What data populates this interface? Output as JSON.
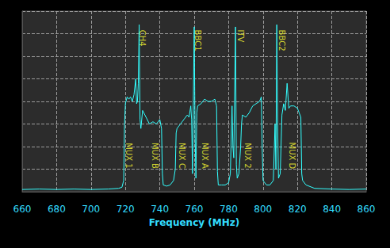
{
  "chart_data": {
    "type": "line",
    "x_label": "Frequency (MHz)",
    "color": "#33ffff",
    "xlim": [
      660,
      860
    ],
    "xticks": [
      660,
      680,
      700,
      720,
      740,
      760,
      780,
      800,
      820,
      840,
      860
    ],
    "ylim": [
      0,
      8
    ],
    "yticks": [
      0,
      1,
      2,
      3,
      4,
      5,
      6,
      7,
      8
    ],
    "grid": true,
    "tick_labels": "x",
    "x": [
      660,
      670,
      680,
      690,
      700,
      710,
      716,
      718,
      719,
      719.5,
      720,
      721,
      722,
      723,
      724,
      725,
      726,
      726.5,
      727,
      727.5,
      728,
      728.5,
      729,
      730,
      732,
      734,
      736,
      738,
      740,
      741,
      741.5,
      742,
      744,
      746,
      748,
      749,
      749.5,
      750,
      752,
      754,
      756,
      757,
      758,
      758.5,
      759,
      760,
      760.5,
      761,
      761.5,
      762,
      764,
      766,
      768,
      770,
      772,
      773,
      773.5,
      774,
      776,
      778,
      780,
      781,
      782,
      782.5,
      783,
      784,
      784.5,
      785,
      786,
      787,
      787.5,
      788,
      790,
      792,
      794,
      796,
      798,
      799,
      799.5,
      800,
      802,
      804,
      806,
      807,
      807.5,
      808,
      808.5,
      809,
      810,
      811,
      812,
      813,
      814,
      815,
      816,
      818,
      820,
      821,
      822,
      822.5,
      823,
      825,
      830,
      840,
      850,
      860
    ],
    "values": [
      0.1,
      0.12,
      0.1,
      0.12,
      0.1,
      0.12,
      0.15,
      0.2,
      0.5,
      3.0,
      3.9,
      4.2,
      4.1,
      4.2,
      4.0,
      4.3,
      5.0,
      3.9,
      4.0,
      4.8,
      7.4,
      3.2,
      2.8,
      3.6,
      3.3,
      3.0,
      3.1,
      3.0,
      3.2,
      2.8,
      0.8,
      0.3,
      0.25,
      0.3,
      0.5,
      1.0,
      2.6,
      2.8,
      3.0,
      3.2,
      3.4,
      3.3,
      3.8,
      3.2,
      0.8,
      7.3,
      2.5,
      0.6,
      3.5,
      3.8,
      3.9,
      4.1,
      4.0,
      4.0,
      4.1,
      3.8,
      0.9,
      0.3,
      0.3,
      0.3,
      0.4,
      0.8,
      3.8,
      2.0,
      1.5,
      7.3,
      1.2,
      0.6,
      0.8,
      2.0,
      3.0,
      3.4,
      3.3,
      3.5,
      3.8,
      3.9,
      4.0,
      4.2,
      2.0,
      0.5,
      0.3,
      0.3,
      0.5,
      3.0,
      1.0,
      7.4,
      3.0,
      0.6,
      0.8,
      3.4,
      3.9,
      3.6,
      4.8,
      3.7,
      3.8,
      3.8,
      3.7,
      3.5,
      3.3,
      0.8,
      0.5,
      0.3,
      0.15,
      0.12,
      0.1,
      0.12
    ],
    "annotations": [
      {
        "text": "CH4",
        "x": 730,
        "y": 6.8
      },
      {
        "text": "BBC1",
        "x": 762,
        "y": 6.7
      },
      {
        "text": "ITV",
        "x": 787,
        "y": 6.9
      },
      {
        "text": "BBC2",
        "x": 811,
        "y": 6.7
      },
      {
        "text": "MUX 1",
        "x": 722,
        "y": 1.6
      },
      {
        "text": "MUX B",
        "x": 737,
        "y": 1.6
      },
      {
        "text": "MUX C",
        "x": 753,
        "y": 1.6
      },
      {
        "text": "MUX A",
        "x": 766,
        "y": 1.6
      },
      {
        "text": "MUX 2",
        "x": 791,
        "y": 1.6
      },
      {
        "text": "MUX D",
        "x": 817,
        "y": 1.6
      }
    ]
  }
}
